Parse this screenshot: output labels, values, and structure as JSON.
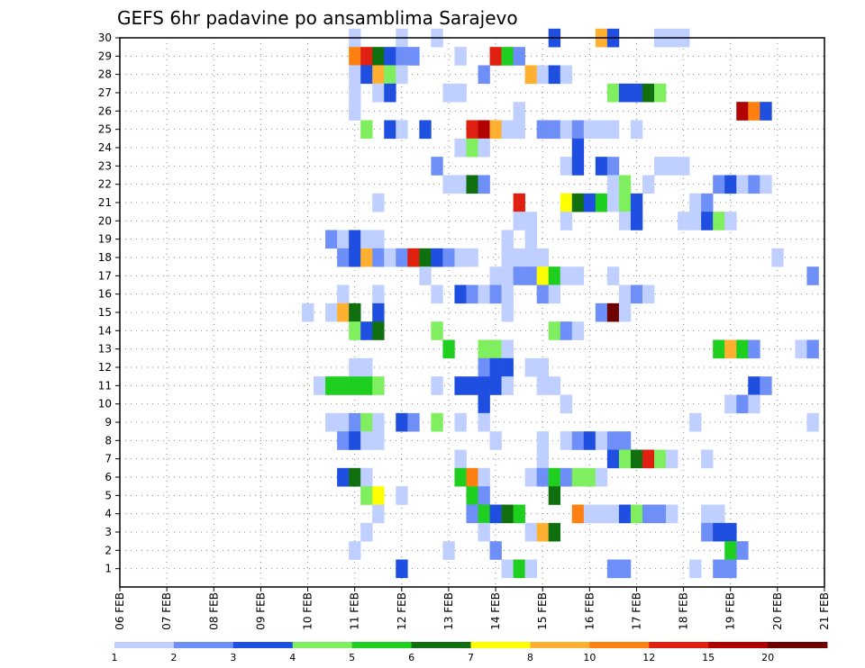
{
  "chart_data": {
    "type": "heatmap",
    "title": "GEFS 6hr padavine po ansamblima Sarajevo",
    "xlabel": "",
    "ylabel": "",
    "x_ticks": [
      "06 FEB",
      "07 FEB",
      "08 FEB",
      "09 FEB",
      "10 FEB",
      "11 FEB",
      "12 FEB",
      "13 FEB",
      "14 FEB",
      "15 FEB",
      "16 FEB",
      "17 FEB",
      "18 FEB",
      "19 FEB",
      "20 FEB",
      "21 FEB"
    ],
    "x_unit": "6h step",
    "y_ticks": [
      1,
      2,
      3,
      4,
      5,
      6,
      7,
      8,
      9,
      10,
      11,
      12,
      13,
      14,
      15,
      16,
      17,
      18,
      19,
      20,
      21,
      22,
      23,
      24,
      25,
      26,
      27,
      28,
      29,
      30
    ],
    "ylim": [
      0,
      30
    ],
    "grid": true,
    "colorbar": {
      "labels": [
        "1",
        "2",
        "3",
        "4",
        "5",
        "6",
        "7",
        "8",
        "10",
        "12",
        "15",
        "20"
      ],
      "colors": [
        "#bfcfff",
        "#6f8ff8",
        "#1f4fe0",
        "#7fef5f",
        "#1fcf1f",
        "#107010",
        "#ffff00",
        "#ffb030",
        "#ff8010",
        "#e02010",
        "#b00000",
        "#6f0000"
      ]
    },
    "cells": [
      [
        20,
        30,
        1
      ],
      [
        24,
        30,
        1
      ],
      [
        27,
        30,
        1
      ],
      [
        37,
        30,
        3
      ],
      [
        41,
        30,
        9
      ],
      [
        42,
        30,
        3
      ],
      [
        46,
        30,
        1
      ],
      [
        47,
        30,
        1
      ],
      [
        48,
        30,
        1
      ],
      [
        20,
        29,
        10
      ],
      [
        21,
        29,
        12
      ],
      [
        22,
        29,
        6
      ],
      [
        23,
        29,
        3
      ],
      [
        24,
        29,
        2
      ],
      [
        25,
        29,
        2
      ],
      [
        29,
        29,
        1
      ],
      [
        32,
        29,
        12
      ],
      [
        33,
        29,
        5
      ],
      [
        34,
        29,
        2
      ],
      [
        20,
        28,
        1
      ],
      [
        21,
        28,
        3
      ],
      [
        22,
        28,
        9
      ],
      [
        23,
        28,
        4
      ],
      [
        24,
        28,
        1
      ],
      [
        31,
        28,
        2
      ],
      [
        35,
        28,
        9
      ],
      [
        36,
        28,
        1
      ],
      [
        37,
        28,
        3
      ],
      [
        38,
        28,
        1
      ],
      [
        20,
        27,
        1
      ],
      [
        22,
        27,
        1
      ],
      [
        23,
        27,
        3
      ],
      [
        28,
        27,
        1
      ],
      [
        29,
        27,
        1
      ],
      [
        42,
        27,
        4
      ],
      [
        43,
        27,
        3
      ],
      [
        44,
        27,
        3
      ],
      [
        45,
        27,
        6
      ],
      [
        46,
        27,
        4
      ],
      [
        20,
        26,
        1
      ],
      [
        34,
        26,
        1
      ],
      [
        53,
        26,
        15
      ],
      [
        54,
        26,
        10
      ],
      [
        55,
        26,
        3
      ],
      [
        21,
        25,
        4
      ],
      [
        23,
        25,
        3
      ],
      [
        24,
        25,
        1
      ],
      [
        26,
        25,
        3
      ],
      [
        30,
        25,
        12
      ],
      [
        31,
        25,
        15
      ],
      [
        32,
        25,
        8
      ],
      [
        33,
        25,
        1
      ],
      [
        34,
        25,
        1
      ],
      [
        36,
        25,
        2
      ],
      [
        37,
        25,
        2
      ],
      [
        38,
        25,
        1
      ],
      [
        39,
        25,
        2
      ],
      [
        40,
        25,
        1
      ],
      [
        41,
        25,
        1
      ],
      [
        42,
        25,
        1
      ],
      [
        44,
        25,
        1
      ],
      [
        29,
        24,
        1
      ],
      [
        30,
        24,
        4
      ],
      [
        31,
        24,
        1
      ],
      [
        39,
        24,
        3
      ],
      [
        27,
        23,
        2
      ],
      [
        38,
        23,
        1
      ],
      [
        39,
        23,
        3
      ],
      [
        41,
        23,
        3
      ],
      [
        42,
        23,
        2
      ],
      [
        46,
        23,
        1
      ],
      [
        47,
        23,
        1
      ],
      [
        48,
        23,
        1
      ],
      [
        28,
        22,
        1
      ],
      [
        29,
        22,
        1
      ],
      [
        30,
        22,
        6
      ],
      [
        31,
        22,
        2
      ],
      [
        42,
        22,
        1
      ],
      [
        43,
        22,
        4
      ],
      [
        45,
        22,
        1
      ],
      [
        51,
        22,
        2
      ],
      [
        52,
        22,
        3
      ],
      [
        53,
        22,
        1
      ],
      [
        54,
        22,
        2
      ],
      [
        55,
        22,
        1
      ],
      [
        22,
        21,
        1
      ],
      [
        34,
        21,
        12
      ],
      [
        38,
        21,
        7
      ],
      [
        39,
        21,
        6
      ],
      [
        40,
        21,
        3
      ],
      [
        41,
        21,
        5
      ],
      [
        42,
        21,
        1
      ],
      [
        43,
        21,
        4
      ],
      [
        44,
        21,
        3
      ],
      [
        49,
        21,
        1
      ],
      [
        50,
        21,
        2
      ],
      [
        34,
        20,
        1
      ],
      [
        35,
        20,
        1
      ],
      [
        38,
        20,
        1
      ],
      [
        43,
        20,
        1
      ],
      [
        44,
        20,
        3
      ],
      [
        48,
        20,
        1
      ],
      [
        49,
        20,
        1
      ],
      [
        50,
        20,
        3
      ],
      [
        51,
        20,
        4
      ],
      [
        52,
        20,
        1
      ],
      [
        18,
        19,
        2
      ],
      [
        19,
        19,
        1
      ],
      [
        20,
        19,
        3
      ],
      [
        21,
        19,
        1
      ],
      [
        22,
        19,
        1
      ],
      [
        33,
        19,
        1
      ],
      [
        35,
        19,
        1
      ],
      [
        19,
        18,
        2
      ],
      [
        20,
        18,
        3
      ],
      [
        21,
        18,
        9
      ],
      [
        22,
        18,
        2
      ],
      [
        23,
        18,
        1
      ],
      [
        24,
        18,
        2
      ],
      [
        25,
        18,
        13
      ],
      [
        26,
        18,
        6
      ],
      [
        27,
        18,
        3
      ],
      [
        28,
        18,
        2
      ],
      [
        29,
        18,
        1
      ],
      [
        30,
        18,
        1
      ],
      [
        33,
        18,
        1
      ],
      [
        34,
        18,
        1
      ],
      [
        35,
        18,
        1
      ],
      [
        36,
        18,
        1
      ],
      [
        56,
        18,
        1
      ],
      [
        26,
        17,
        1
      ],
      [
        32,
        17,
        1
      ],
      [
        33,
        17,
        1
      ],
      [
        34,
        17,
        2
      ],
      [
        35,
        17,
        2
      ],
      [
        36,
        17,
        7
      ],
      [
        37,
        17,
        5
      ],
      [
        38,
        17,
        1
      ],
      [
        39,
        17,
        1
      ],
      [
        42,
        17,
        1
      ],
      [
        59,
        17,
        2
      ],
      [
        19,
        16,
        1
      ],
      [
        22,
        16,
        1
      ],
      [
        27,
        16,
        1
      ],
      [
        29,
        16,
        3
      ],
      [
        30,
        16,
        2
      ],
      [
        31,
        16,
        1
      ],
      [
        32,
        16,
        2
      ],
      [
        33,
        16,
        1
      ],
      [
        36,
        16,
        2
      ],
      [
        37,
        16,
        1
      ],
      [
        43,
        16,
        1
      ],
      [
        44,
        16,
        2
      ],
      [
        45,
        16,
        1
      ],
      [
        16,
        15,
        1
      ],
      [
        18,
        15,
        1
      ],
      [
        19,
        15,
        9
      ],
      [
        20,
        15,
        6
      ],
      [
        22,
        15,
        3
      ],
      [
        33,
        15,
        1
      ],
      [
        41,
        15,
        2
      ],
      [
        42,
        15,
        20
      ],
      [
        43,
        15,
        1
      ],
      [
        20,
        14,
        4
      ],
      [
        21,
        14,
        3
      ],
      [
        22,
        14,
        6
      ],
      [
        27,
        14,
        4
      ],
      [
        37,
        14,
        4
      ],
      [
        38,
        14,
        2
      ],
      [
        39,
        14,
        1
      ],
      [
        28,
        13,
        5
      ],
      [
        31,
        13,
        4
      ],
      [
        32,
        13,
        4
      ],
      [
        33,
        13,
        1
      ],
      [
        51,
        13,
        5
      ],
      [
        52,
        13,
        9
      ],
      [
        53,
        13,
        5
      ],
      [
        54,
        13,
        2
      ],
      [
        58,
        13,
        1
      ],
      [
        59,
        13,
        2
      ],
      [
        20,
        12,
        1
      ],
      [
        21,
        12,
        1
      ],
      [
        31,
        12,
        2
      ],
      [
        32,
        12,
        3
      ],
      [
        33,
        12,
        3
      ],
      [
        35,
        12,
        1
      ],
      [
        36,
        12,
        1
      ],
      [
        17,
        11,
        1
      ],
      [
        18,
        11,
        5
      ],
      [
        19,
        11,
        5
      ],
      [
        20,
        11,
        5
      ],
      [
        21,
        11,
        5
      ],
      [
        22,
        11,
        4
      ],
      [
        27,
        11,
        1
      ],
      [
        29,
        11,
        3
      ],
      [
        30,
        11,
        3
      ],
      [
        31,
        11,
        3
      ],
      [
        32,
        11,
        3
      ],
      [
        33,
        11,
        1
      ],
      [
        36,
        11,
        1
      ],
      [
        37,
        11,
        1
      ],
      [
        54,
        11,
        3
      ],
      [
        55,
        11,
        2
      ],
      [
        31,
        10,
        3
      ],
      [
        38,
        10,
        1
      ],
      [
        52,
        10,
        1
      ],
      [
        53,
        10,
        2
      ],
      [
        54,
        10,
        1
      ],
      [
        18,
        9,
        1
      ],
      [
        19,
        9,
        1
      ],
      [
        20,
        9,
        2
      ],
      [
        21,
        9,
        4
      ],
      [
        22,
        9,
        1
      ],
      [
        24,
        9,
        3
      ],
      [
        25,
        9,
        2
      ],
      [
        27,
        9,
        4
      ],
      [
        29,
        9,
        1
      ],
      [
        31,
        9,
        1
      ],
      [
        49,
        9,
        1
      ],
      [
        59,
        9,
        1
      ],
      [
        19,
        8,
        2
      ],
      [
        20,
        8,
        3
      ],
      [
        21,
        8,
        1
      ],
      [
        22,
        8,
        1
      ],
      [
        32,
        8,
        1
      ],
      [
        36,
        8,
        1
      ],
      [
        38,
        8,
        1
      ],
      [
        39,
        8,
        2
      ],
      [
        40,
        8,
        3
      ],
      [
        41,
        8,
        1
      ],
      [
        42,
        8,
        2
      ],
      [
        43,
        8,
        2
      ],
      [
        29,
        7,
        1
      ],
      [
        36,
        7,
        1
      ],
      [
        42,
        7,
        3
      ],
      [
        43,
        7,
        4
      ],
      [
        44,
        7,
        6
      ],
      [
        45,
        7,
        12
      ],
      [
        46,
        7,
        4
      ],
      [
        47,
        7,
        1
      ],
      [
        50,
        7,
        1
      ],
      [
        19,
        6,
        3
      ],
      [
        20,
        6,
        6
      ],
      [
        21,
        6,
        1
      ],
      [
        29,
        6,
        5
      ],
      [
        30,
        6,
        10
      ],
      [
        31,
        6,
        1
      ],
      [
        35,
        6,
        1
      ],
      [
        36,
        6,
        2
      ],
      [
        37,
        6,
        5
      ],
      [
        38,
        6,
        2
      ],
      [
        39,
        6,
        4
      ],
      [
        40,
        6,
        4
      ],
      [
        41,
        6,
        1
      ],
      [
        21,
        5,
        4
      ],
      [
        22,
        5,
        7
      ],
      [
        24,
        5,
        1
      ],
      [
        30,
        5,
        5
      ],
      [
        31,
        5,
        2
      ],
      [
        37,
        5,
        6
      ],
      [
        22,
        4,
        1
      ],
      [
        30,
        4,
        2
      ],
      [
        31,
        4,
        5
      ],
      [
        32,
        4,
        3
      ],
      [
        33,
        4,
        6
      ],
      [
        34,
        4,
        5
      ],
      [
        39,
        4,
        10
      ],
      [
        40,
        4,
        1
      ],
      [
        41,
        4,
        1
      ],
      [
        42,
        4,
        1
      ],
      [
        43,
        4,
        3
      ],
      [
        44,
        4,
        4
      ],
      [
        45,
        4,
        2
      ],
      [
        46,
        4,
        2
      ],
      [
        47,
        4,
        1
      ],
      [
        50,
        4,
        1
      ],
      [
        51,
        4,
        1
      ],
      [
        21,
        3,
        1
      ],
      [
        31,
        3,
        1
      ],
      [
        35,
        3,
        1
      ],
      [
        36,
        3,
        9
      ],
      [
        37,
        3,
        6
      ],
      [
        50,
        3,
        2
      ],
      [
        51,
        3,
        3
      ],
      [
        52,
        3,
        3
      ],
      [
        20,
        2,
        1
      ],
      [
        28,
        2,
        1
      ],
      [
        32,
        2,
        2
      ],
      [
        52,
        2,
        5
      ],
      [
        53,
        2,
        2
      ],
      [
        24,
        1,
        3
      ],
      [
        33,
        1,
        1
      ],
      [
        34,
        1,
        5
      ],
      [
        35,
        1,
        1
      ],
      [
        42,
        1,
        2
      ],
      [
        43,
        1,
        2
      ],
      [
        49,
        1,
        1
      ],
      [
        51,
        1,
        2
      ],
      [
        52,
        1,
        2
      ]
    ]
  }
}
